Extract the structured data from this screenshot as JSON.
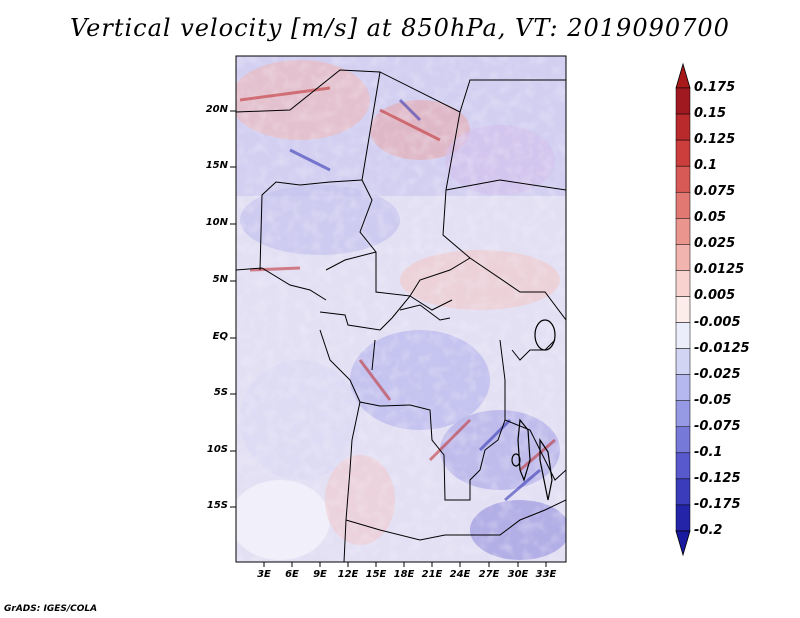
{
  "title": "Vertical velocity [m/s] at 850hPa, VT: 2019090700",
  "credit": "GrADS: IGES/COLA",
  "map": {
    "lat_labels": [
      "20N",
      "15N",
      "10N",
      "5N",
      "EQ",
      "5S",
      "10S",
      "15S"
    ],
    "lon_labels": [
      "3E",
      "6E",
      "9E",
      "12E",
      "15E",
      "18E",
      "21E",
      "24E",
      "27E",
      "30E",
      "33E"
    ]
  },
  "colorbar": {
    "labels": [
      "0.175",
      "0.15",
      "0.125",
      "0.1",
      "0.075",
      "0.05",
      "0.025",
      "0.0125",
      "0.005",
      "-0.005",
      "-0.0125",
      "-0.025",
      "-0.05",
      "-0.075",
      "-0.1",
      "-0.125",
      "-0.175",
      "-0.2"
    ],
    "colors": [
      "#a01820",
      "#b82a2c",
      "#cc3e3c",
      "#d85a56",
      "#e27872",
      "#eb958f",
      "#f2b4ae",
      "#f8d2ce",
      "#fcecea",
      "#ecedfb",
      "#d2d4f4",
      "#b5b8ee",
      "#9699e4",
      "#7779d9",
      "#5759cc",
      "#3a3cbc",
      "#2324a8",
      "#141594"
    ],
    "top_color": "#a81a1a",
    "bottom_color": "#1a1aa0"
  }
}
